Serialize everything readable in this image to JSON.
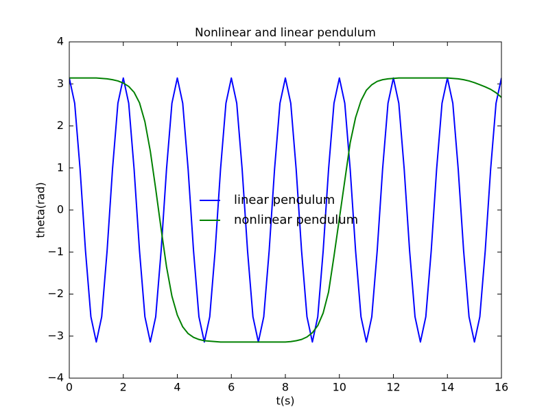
{
  "chart_data": {
    "type": "line",
    "title": "Nonlinear and linear pendulum",
    "x_label": "t(s)",
    "y_label": "theta(rad)",
    "x": [
      0,
      0.2,
      0.4,
      0.6,
      0.8,
      1,
      1.2,
      1.4,
      1.6,
      1.8,
      2,
      2.2,
      2.4,
      2.6,
      2.8,
      3,
      3.2,
      3.4,
      3.6,
      3.8,
      4,
      4.2,
      4.4,
      4.6,
      4.8,
      5,
      5.2,
      5.4,
      5.6,
      5.8,
      6,
      6.2,
      6.4,
      6.6,
      6.8,
      7,
      7.2,
      7.4,
      7.6,
      7.8,
      8,
      8.2,
      8.4,
      8.6,
      8.8,
      9,
      9.2,
      9.4,
      9.6,
      9.8,
      10,
      10.2,
      10.4,
      10.6,
      10.8,
      11,
      11.2,
      11.4,
      11.6,
      11.8,
      12,
      12.2,
      12.4,
      12.6,
      12.8,
      13,
      13.2,
      13.4,
      13.6,
      13.8,
      14,
      14.2,
      14.4,
      14.6,
      14.8,
      15,
      15.2,
      15.4,
      15.6,
      15.8,
      16
    ],
    "series": [
      {
        "name": "linear pendulum",
        "color": "#0000ff",
        "values": [
          3.14,
          2.54,
          0.97,
          -0.97,
          -2.54,
          -3.14,
          -2.54,
          -0.97,
          0.97,
          2.54,
          3.14,
          2.54,
          0.97,
          -0.97,
          -2.54,
          -3.14,
          -2.54,
          -0.97,
          0.97,
          2.54,
          3.14,
          2.54,
          0.97,
          -0.97,
          -2.54,
          -3.14,
          -2.54,
          -0.97,
          0.97,
          2.54,
          3.14,
          2.54,
          0.97,
          -0.97,
          -2.54,
          -3.14,
          -2.54,
          -0.97,
          0.97,
          2.54,
          3.14,
          2.54,
          0.97,
          -0.97,
          -2.54,
          -3.14,
          -2.54,
          -0.97,
          0.97,
          2.54,
          3.14,
          2.54,
          0.97,
          -0.97,
          -2.54,
          -3.14,
          -2.54,
          -0.97,
          0.97,
          2.54,
          3.14,
          2.54,
          0.97,
          -0.97,
          -2.54,
          -3.14,
          -2.54,
          -0.97,
          0.97,
          2.54,
          3.14,
          2.54,
          0.97,
          -0.97,
          -2.54,
          -3.14,
          -2.54,
          -0.97,
          0.97,
          2.54,
          3.14
        ]
      },
      {
        "name": "nonlinear pendulum",
        "color": "#008000",
        "values": [
          3.14,
          3.14,
          3.14,
          3.14,
          3.14,
          3.14,
          3.13,
          3.12,
          3.1,
          3.07,
          3.02,
          2.94,
          2.8,
          2.55,
          2.1,
          1.4,
          0.5,
          -0.45,
          -1.35,
          -2.05,
          -2.5,
          -2.78,
          -2.94,
          -3.03,
          -3.08,
          -3.11,
          -3.12,
          -3.13,
          -3.14,
          -3.14,
          -3.14,
          -3.14,
          -3.14,
          -3.14,
          -3.14,
          -3.14,
          -3.14,
          -3.14,
          -3.14,
          -3.14,
          -3.14,
          -3.13,
          -3.11,
          -3.08,
          -3.02,
          -2.92,
          -2.75,
          -2.45,
          -1.95,
          -1.1,
          -0.2,
          0.7,
          1.6,
          2.2,
          2.6,
          2.85,
          2.98,
          3.06,
          3.1,
          3.12,
          3.13,
          3.14,
          3.14,
          3.14,
          3.14,
          3.14,
          3.14,
          3.14,
          3.14,
          3.14,
          3.14,
          3.13,
          3.12,
          3.1,
          3.07,
          3.03,
          2.98,
          2.93,
          2.87,
          2.79,
          2.68
        ]
      }
    ],
    "xlim": [
      0,
      16
    ],
    "xticks": [
      0,
      2,
      4,
      6,
      8,
      10,
      12,
      14,
      16
    ],
    "ylim": [
      -4,
      4
    ],
    "yticks": [
      {
        "value": -4,
        "label": "−4"
      },
      {
        "value": -3,
        "label": "−3"
      },
      {
        "value": -2,
        "label": "−2"
      },
      {
        "value": -1,
        "label": "−1"
      },
      0,
      1,
      2,
      3,
      4
    ],
    "legend": "center",
    "grid": false
  }
}
